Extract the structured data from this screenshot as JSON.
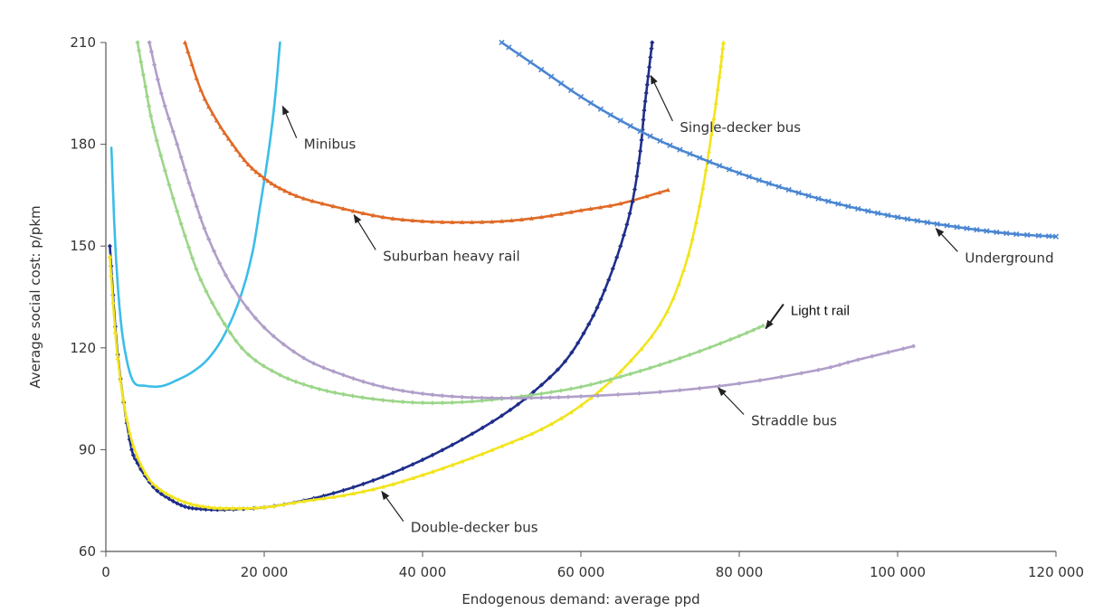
{
  "chart_data": {
    "type": "line",
    "xlabel": "Endogenous demand: average ppd",
    "ylabel": "Average social cost: p/pkm",
    "xlim": [
      0,
      120000
    ],
    "ylim": [
      60,
      210
    ],
    "x_ticks": [
      "0",
      "20 000",
      "40 000",
      "60 000",
      "80 000",
      "100 000",
      "120 000"
    ],
    "y_ticks": [
      "60",
      "90",
      "120",
      "150",
      "180",
      "210"
    ],
    "grid": false,
    "legend": "none (series labeled by arrows)",
    "series": [
      {
        "name": "Minibus",
        "color": "#3BBDE8",
        "marker": "none",
        "points": [
          [
            700,
            179
          ],
          [
            1200,
            150
          ],
          [
            1800,
            130
          ],
          [
            2500,
            118
          ],
          [
            3500,
            110
          ],
          [
            5000,
            108.8
          ],
          [
            7000,
            108.7
          ],
          [
            9000,
            110.5
          ],
          [
            11000,
            113
          ],
          [
            13000,
            117
          ],
          [
            15000,
            124
          ],
          [
            17000,
            135
          ],
          [
            18500,
            148
          ],
          [
            19500,
            162
          ],
          [
            20500,
            177
          ],
          [
            21300,
            192
          ],
          [
            22000,
            210
          ]
        ]
      },
      {
        "name": "Suburban heavy rail",
        "color": "#E06A26",
        "marker": "triangle",
        "points": [
          [
            10000,
            210
          ],
          [
            12000,
            196
          ],
          [
            14000,
            187
          ],
          [
            16000,
            180
          ],
          [
            18000,
            174
          ],
          [
            20000,
            170
          ],
          [
            22000,
            167
          ],
          [
            25000,
            164
          ],
          [
            30000,
            161
          ],
          [
            35000,
            158.5
          ],
          [
            40000,
            157.3
          ],
          [
            45000,
            157
          ],
          [
            50000,
            157.3
          ],
          [
            55000,
            158.5
          ],
          [
            60000,
            160.5
          ],
          [
            65000,
            162.5
          ],
          [
            71000,
            166.5
          ]
        ]
      },
      {
        "name": "Single-decker bus",
        "color": "#1F2E8A",
        "marker": "diamond",
        "points": [
          [
            500,
            150
          ],
          [
            1500,
            118
          ],
          [
            3000,
            93
          ],
          [
            4000,
            86
          ],
          [
            6000,
            79
          ],
          [
            8000,
            75.5
          ],
          [
            10000,
            73.2
          ],
          [
            12000,
            72.5
          ],
          [
            15000,
            72.3
          ],
          [
            20000,
            73
          ],
          [
            25000,
            75
          ],
          [
            30000,
            78
          ],
          [
            35000,
            82
          ],
          [
            40000,
            87
          ],
          [
            45000,
            93
          ],
          [
            50000,
            100
          ],
          [
            54000,
            107
          ],
          [
            58000,
            116
          ],
          [
            61000,
            127
          ],
          [
            63000,
            137
          ],
          [
            65000,
            150
          ],
          [
            66500,
            163
          ],
          [
            67500,
            178
          ],
          [
            68000,
            190
          ],
          [
            68500,
            200
          ],
          [
            69000,
            210
          ]
        ]
      },
      {
        "name": "Double-decker bus",
        "color": "#F2E41C",
        "marker": "triangle",
        "points": [
          [
            500,
            147
          ],
          [
            1500,
            117
          ],
          [
            3000,
            95
          ],
          [
            5000,
            83
          ],
          [
            7000,
            78
          ],
          [
            10000,
            74.5
          ],
          [
            13000,
            73
          ],
          [
            16000,
            72.7
          ],
          [
            20000,
            73
          ],
          [
            25000,
            74.8
          ],
          [
            30000,
            76.5
          ],
          [
            35000,
            79
          ],
          [
            40000,
            82.5
          ],
          [
            45000,
            86.5
          ],
          [
            50000,
            91
          ],
          [
            55000,
            96
          ],
          [
            60000,
            103
          ],
          [
            65000,
            113
          ],
          [
            70000,
            127
          ],
          [
            73000,
            143
          ],
          [
            75000,
            162
          ],
          [
            76500,
            183
          ],
          [
            77500,
            200
          ],
          [
            78000,
            210
          ]
        ]
      },
      {
        "name": "Light t rail",
        "color": "#9CD68A",
        "marker": "diamond",
        "points": [
          [
            4000,
            210
          ],
          [
            5000,
            197
          ],
          [
            6000,
            185
          ],
          [
            8000,
            168
          ],
          [
            10000,
            153
          ],
          [
            12000,
            140
          ],
          [
            15000,
            127
          ],
          [
            18000,
            118
          ],
          [
            22000,
            112
          ],
          [
            26000,
            108.5
          ],
          [
            30000,
            106.3
          ],
          [
            35000,
            104.6
          ],
          [
            40000,
            103.8
          ],
          [
            45000,
            104
          ],
          [
            50000,
            105
          ],
          [
            55000,
            106.5
          ],
          [
            60000,
            108.5
          ],
          [
            65000,
            111.5
          ],
          [
            70000,
            115
          ],
          [
            75000,
            119
          ],
          [
            80000,
            123.5
          ],
          [
            83000,
            126.5
          ]
        ]
      },
      {
        "name": "Straddle bus",
        "color": "#B09FC9",
        "marker": "diamond",
        "points": [
          [
            5500,
            210
          ],
          [
            7000,
            195
          ],
          [
            9000,
            180
          ],
          [
            11000,
            165
          ],
          [
            13000,
            152
          ],
          [
            16000,
            138
          ],
          [
            20000,
            126
          ],
          [
            25000,
            117
          ],
          [
            30000,
            112
          ],
          [
            35000,
            108.5
          ],
          [
            40000,
            106.5
          ],
          [
            45000,
            105.5
          ],
          [
            50000,
            105.2
          ],
          [
            55000,
            105.3
          ],
          [
            60000,
            105.7
          ],
          [
            70000,
            107
          ],
          [
            80000,
            109.5
          ],
          [
            90000,
            113.5
          ],
          [
            95000,
            116.5
          ],
          [
            102000,
            120.5
          ]
        ]
      },
      {
        "name": "Underground",
        "color": "#4A86D2",
        "marker": "cross",
        "points": [
          [
            50000,
            210
          ],
          [
            55000,
            202
          ],
          [
            60000,
            194
          ],
          [
            65000,
            187
          ],
          [
            70000,
            181
          ],
          [
            75000,
            176
          ],
          [
            80000,
            171.5
          ],
          [
            85000,
            167.5
          ],
          [
            90000,
            164
          ],
          [
            95000,
            161
          ],
          [
            100000,
            158.5
          ],
          [
            105000,
            156.5
          ],
          [
            110000,
            154.8
          ],
          [
            115000,
            153.5
          ],
          [
            120000,
            152.8
          ]
        ]
      }
    ],
    "annotations": [
      {
        "text": "Minibus",
        "point_at": [
          22000,
          192
        ],
        "label_at": [
          25000,
          180
        ]
      },
      {
        "text": "Single-decker bus",
        "point_at": [
          68500,
          201
        ],
        "label_at": [
          72500,
          185
        ]
      },
      {
        "text": "Suburban heavy rail",
        "point_at": [
          31000,
          160
        ],
        "label_at": [
          35000,
          147
        ]
      },
      {
        "text": "Underground",
        "point_at": [
          104500,
          156
        ],
        "label_at": [
          108500,
          146.5
        ]
      },
      {
        "text": "Light t rail",
        "point_at": [
          83000,
          126.5
        ],
        "label_at": [
          86500,
          131
        ]
      },
      {
        "text": "Straddle bus",
        "point_at": [
          77000,
          109
        ],
        "label_at": [
          81500,
          98.5
        ]
      },
      {
        "text": "Double-decker bus",
        "point_at": [
          34500,
          78.5
        ],
        "label_at": [
          38500,
          67
        ]
      }
    ]
  }
}
